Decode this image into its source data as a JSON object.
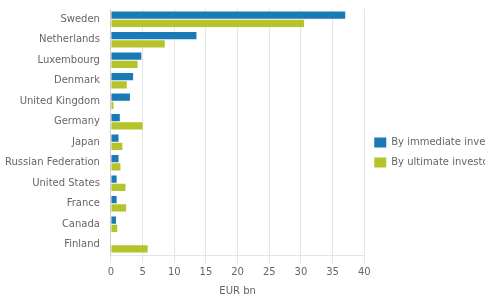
{
  "chart_data": {
    "type": "bar",
    "orientation": "horizontal",
    "categories": [
      "Sweden",
      "Netherlands",
      "Luxembourg",
      "Denmark",
      "United Kingdom",
      "Germany",
      "Japan",
      "Russian Federation",
      "United States",
      "France",
      "Canada",
      "Finland"
    ],
    "series": [
      {
        "name": "By immediate investor",
        "color": "#1a7ab5",
        "values": [
          37.0,
          13.5,
          4.8,
          3.5,
          3.0,
          1.4,
          1.2,
          1.2,
          0.9,
          0.9,
          0.8,
          0.0
        ]
      },
      {
        "name": "By ultimate investor",
        "color": "#b5c42a",
        "values": [
          30.5,
          8.5,
          4.2,
          2.5,
          0.4,
          5.0,
          1.8,
          1.5,
          2.3,
          2.4,
          1.0,
          5.8
        ]
      }
    ],
    "xlabel": "EUR bn",
    "xlim": [
      0,
      40
    ],
    "xticks": [
      0,
      5,
      10,
      15,
      20,
      25,
      30,
      35,
      40
    ],
    "grid": true,
    "legend": "right"
  }
}
